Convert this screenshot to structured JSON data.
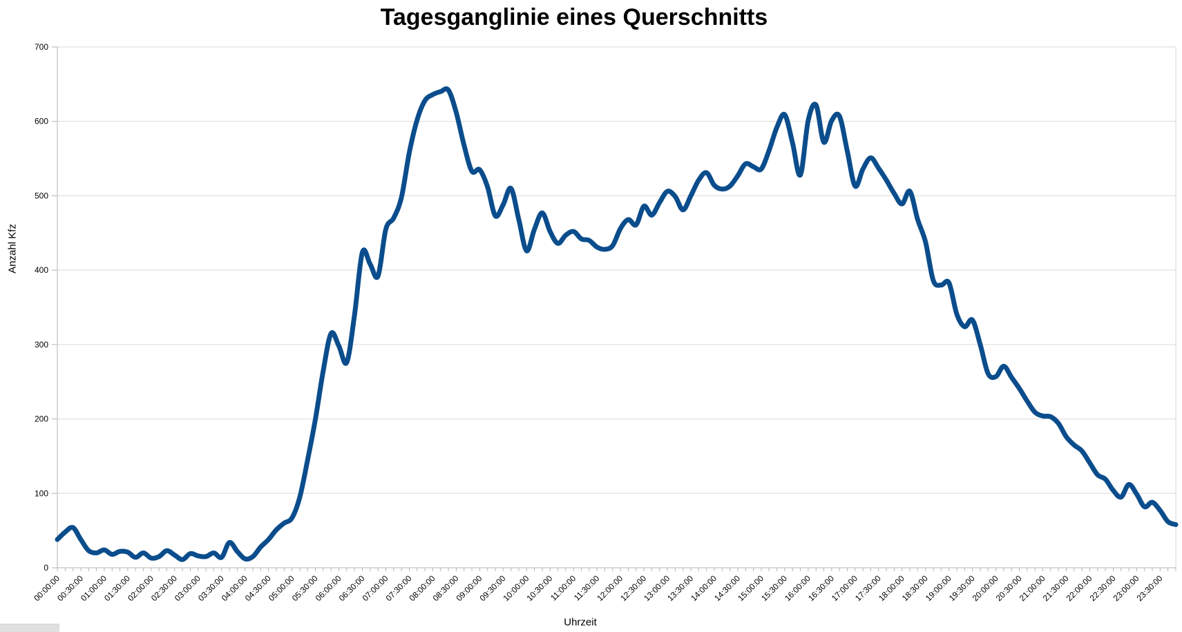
{
  "chart_data": {
    "type": "line",
    "title": "Tagesganglinie eines Querschnitts",
    "xlabel": "Uhrzeit",
    "ylabel": "Anzahl Kfz",
    "ylim": [
      0,
      700
    ],
    "y_ticks": [
      0,
      100,
      200,
      300,
      400,
      500,
      600,
      700
    ],
    "grid": "horizontal",
    "legend": "none",
    "smooth": true,
    "x_interval_minutes": 10,
    "x_start": "00:00:00",
    "x_tick_labels": [
      "00:00:00",
      "00:30:00",
      "01:00:00",
      "01:30:00",
      "02:00:00",
      "02:30:00",
      "03:00:00",
      "03:30:00",
      "04:00:00",
      "04:30:00",
      "05:00:00",
      "05:30:00",
      "06:00:00",
      "06:30:00",
      "07:00:00",
      "07:30:00",
      "08:00:00",
      "08:30:00",
      "09:00:00",
      "09:30:00",
      "10:00:00",
      "10:30:00",
      "11:00:00",
      "11:30:00",
      "12:00:00",
      "12:30:00",
      "13:00:00",
      "13:30:00",
      "14:00:00",
      "14:30:00",
      "15:00:00",
      "15:30:00",
      "16:00:00",
      "16:30:00",
      "17:00:00",
      "17:30:00",
      "18:00:00",
      "18:30:00",
      "19:00:00",
      "19:30:00",
      "20:00:00",
      "20:30:00",
      "21:00:00",
      "21:30:00",
      "22:00:00",
      "22:30:00",
      "23:00:00",
      "23:30:00"
    ],
    "series": [
      {
        "name": "Anzahl Kfz",
        "color": "#0b4d8c",
        "line_width": 7,
        "values": [
          38,
          48,
          54,
          38,
          23,
          20,
          24,
          18,
          22,
          21,
          14,
          20,
          13,
          15,
          23,
          17,
          11,
          19,
          16,
          15,
          20,
          14,
          34,
          22,
          12,
          15,
          28,
          38,
          51,
          60,
          67,
          95,
          145,
          200,
          265,
          315,
          298,
          276,
          340,
          424,
          408,
          392,
          455,
          470,
          498,
          558,
          602,
          628,
          636,
          640,
          642,
          612,
          568,
          533,
          535,
          512,
          473,
          488,
          510,
          468,
          426,
          455,
          477,
          452,
          436,
          447,
          452,
          442,
          440,
          431,
          428,
          433,
          456,
          468,
          461,
          486,
          474,
          491,
          506,
          499,
          481,
          500,
          521,
          531,
          514,
          509,
          513,
          527,
          543,
          539,
          536,
          561,
          592,
          609,
          571,
          528,
          601,
          622,
          572,
          601,
          607,
          560,
          513,
          536,
          551,
          537,
          521,
          503,
          489,
          506,
          468,
          438,
          386,
          380,
          383,
          341,
          324,
          333,
          300,
          261,
          257,
          271,
          256,
          241,
          224,
          209,
          204,
          203,
          194,
          176,
          165,
          157,
          141,
          125,
          119,
          104,
          95,
          112,
          99,
          82,
          88,
          77,
          62,
          58
        ]
      }
    ],
    "colors": {
      "gridline": "#d9d9d9",
      "axis": "#b3b3b3",
      "text": "#000000",
      "background": "#ffffff"
    }
  }
}
